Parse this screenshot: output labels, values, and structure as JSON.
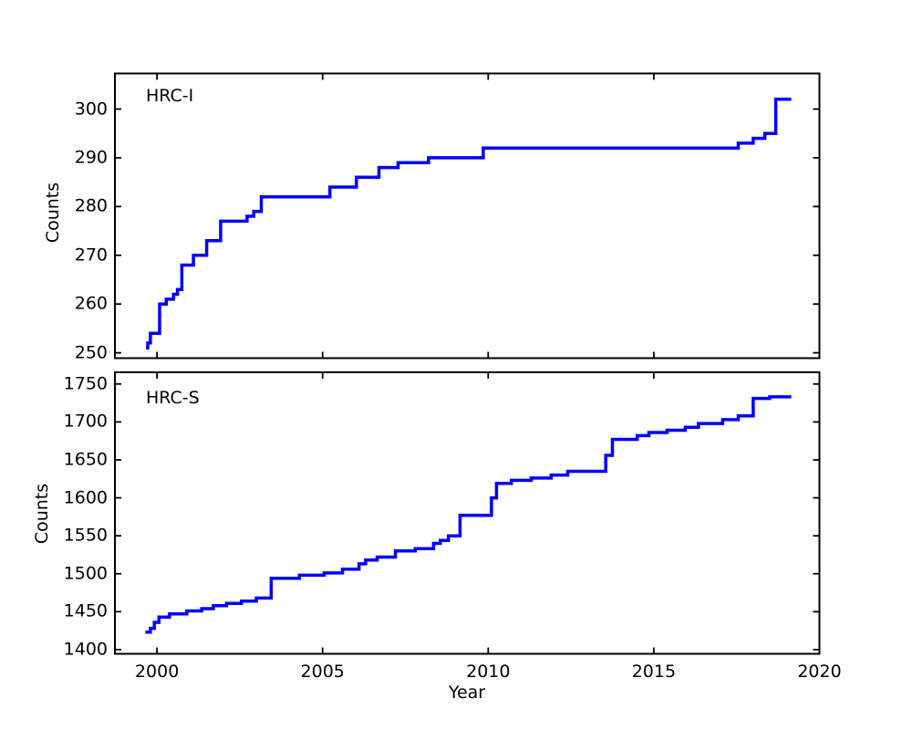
{
  "figure": {
    "background": "#ffffff",
    "axis_color": "#000000",
    "accent_line_color": "#0000ff"
  },
  "chart_data": [
    {
      "type": "line",
      "style": "steps-post",
      "title": "HRC-I",
      "xlabel": "",
      "ylabel": "Counts",
      "legend": "none",
      "grid": false,
      "xlim": [
        1998.73,
        2020.0
      ],
      "ylim": [
        248.9,
        307.3
      ],
      "xticks": [
        2000,
        2005,
        2010,
        2015,
        2020
      ],
      "xtick_labels_visible": false,
      "yticks": [
        250,
        260,
        270,
        280,
        290,
        300
      ],
      "line_color": "#0000ff",
      "line_width": 3.5,
      "points": [
        [
          1999.67,
          251
        ],
        [
          1999.72,
          252
        ],
        [
          1999.8,
          254
        ],
        [
          2000.08,
          260
        ],
        [
          2000.28,
          261
        ],
        [
          2000.5,
          262
        ],
        [
          2000.62,
          263
        ],
        [
          2000.75,
          268
        ],
        [
          2001.1,
          270
        ],
        [
          2001.5,
          273
        ],
        [
          2001.92,
          277
        ],
        [
          2002.72,
          278
        ],
        [
          2002.92,
          279
        ],
        [
          2003.15,
          282
        ],
        [
          2005.22,
          284
        ],
        [
          2006.02,
          286
        ],
        [
          2006.7,
          288
        ],
        [
          2007.28,
          289
        ],
        [
          2008.2,
          290
        ],
        [
          2009.85,
          292
        ],
        [
          2017.55,
          293
        ],
        [
          2018.0,
          294
        ],
        [
          2018.35,
          295
        ],
        [
          2018.68,
          302
        ],
        [
          2019.15,
          302
        ]
      ]
    },
    {
      "type": "line",
      "style": "steps-post",
      "title": "HRC-S",
      "xlabel": "Year",
      "ylabel": "Counts",
      "legend": "none",
      "grid": false,
      "xlim": [
        1998.73,
        2020.0
      ],
      "ylim": [
        1394.5,
        1765.4
      ],
      "xticks": [
        2000,
        2005,
        2010,
        2015,
        2020
      ],
      "xtick_labels_visible": true,
      "yticks": [
        1400,
        1450,
        1500,
        1550,
        1600,
        1650,
        1700,
        1750
      ],
      "line_color": "#0000ff",
      "line_width": 3.5,
      "points": [
        [
          1999.65,
          1423
        ],
        [
          1999.8,
          1428
        ],
        [
          1999.92,
          1436
        ],
        [
          2000.06,
          1443
        ],
        [
          2000.38,
          1447
        ],
        [
          2000.9,
          1451
        ],
        [
          2001.35,
          1454
        ],
        [
          2001.7,
          1458
        ],
        [
          2002.1,
          1461
        ],
        [
          2002.55,
          1464
        ],
        [
          2003.0,
          1468
        ],
        [
          2003.45,
          1494
        ],
        [
          2004.3,
          1498
        ],
        [
          2005.05,
          1501
        ],
        [
          2005.6,
          1506
        ],
        [
          2006.1,
          1513
        ],
        [
          2006.3,
          1518
        ],
        [
          2006.65,
          1522
        ],
        [
          2007.2,
          1530
        ],
        [
          2007.8,
          1533
        ],
        [
          2008.35,
          1540
        ],
        [
          2008.55,
          1544
        ],
        [
          2008.8,
          1550
        ],
        [
          2009.15,
          1577
        ],
        [
          2010.1,
          1600
        ],
        [
          2010.25,
          1619
        ],
        [
          2010.7,
          1623
        ],
        [
          2011.3,
          1626
        ],
        [
          2011.9,
          1630
        ],
        [
          2012.4,
          1635
        ],
        [
          2013.55,
          1656
        ],
        [
          2013.75,
          1677
        ],
        [
          2014.5,
          1682
        ],
        [
          2014.85,
          1686
        ],
        [
          2015.4,
          1689
        ],
        [
          2015.95,
          1693
        ],
        [
          2016.35,
          1698
        ],
        [
          2017.08,
          1703
        ],
        [
          2017.55,
          1708
        ],
        [
          2018.0,
          1731
        ],
        [
          2018.5,
          1733
        ],
        [
          2019.15,
          1733
        ]
      ]
    }
  ]
}
